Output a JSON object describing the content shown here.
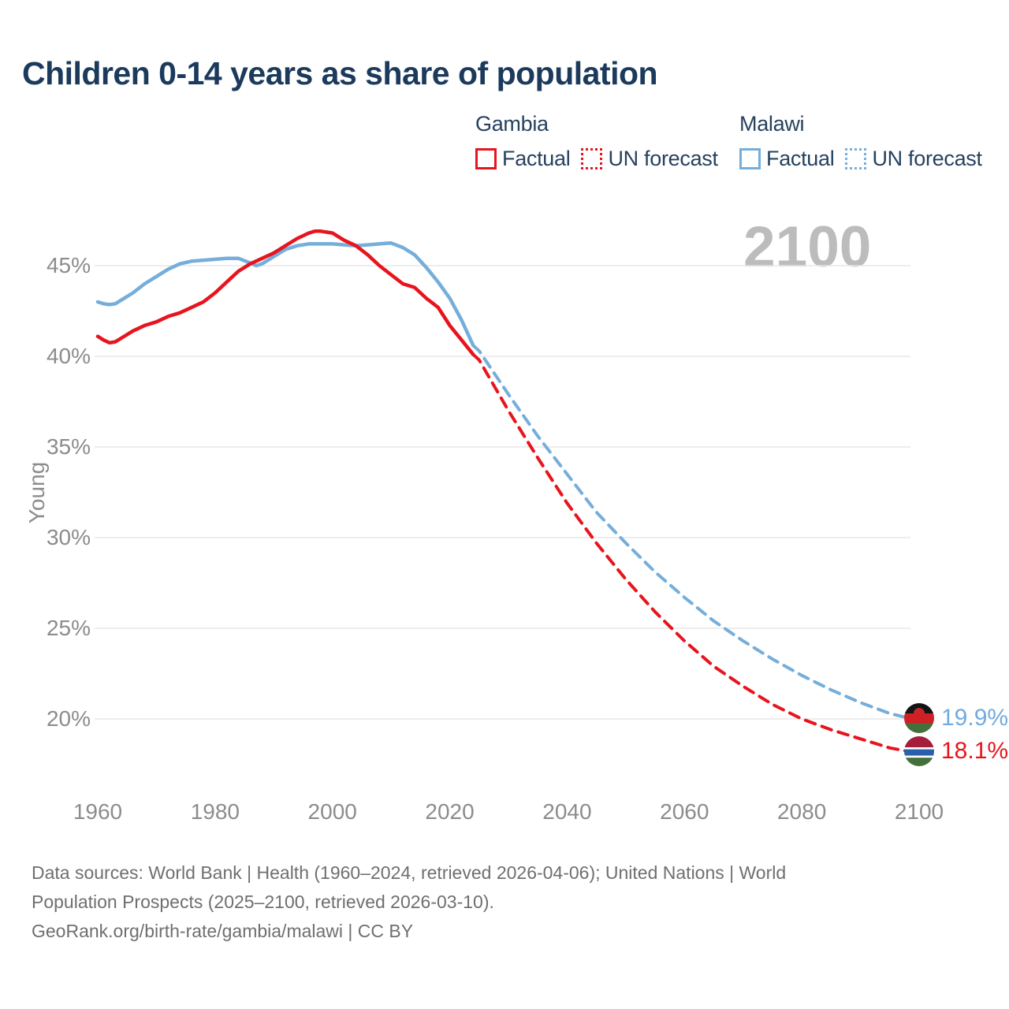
{
  "title": "Children 0-14 years as share of population",
  "watermark": "2100",
  "legend": {
    "groups": [
      {
        "name": "Gambia",
        "color": "#e8141d",
        "items": [
          {
            "label": "Factual",
            "style": "solid"
          },
          {
            "label": "UN forecast",
            "style": "dotted"
          }
        ]
      },
      {
        "name": "Malawi",
        "color": "#75aedb",
        "items": [
          {
            "label": "Factual",
            "style": "solid"
          },
          {
            "label": "UN forecast",
            "style": "dotted"
          }
        ]
      }
    ]
  },
  "end_labels": [
    {
      "country": "Malawi",
      "value": "19.9%",
      "color": "#72abde",
      "flag_icon": "malawi-flag-icon",
      "year": 2100
    },
    {
      "country": "Gambia",
      "value": "18.1%",
      "color": "#e8141d",
      "flag_icon": "gambia-flag-icon",
      "year": 2100
    }
  ],
  "footer": {
    "line1": "Data sources: World Bank | Health (1960–2024, retrieved 2026-04-06); United Nations | World",
    "line2": "Population Prospects (2025–2100, retrieved 2026-03-10).",
    "line3": "GeoRank.org/birth-rate/gambia/malawi | CC BY"
  },
  "chart_data": {
    "type": "line",
    "title": "Children 0-14 years as share of population",
    "xlabel": "",
    "ylabel": "Young",
    "xlim": [
      1959.5,
      2101.5
    ],
    "ylim": [
      17.5,
      47.5
    ],
    "grid": "horizontal-only",
    "legend_position": "top-right",
    "yticks": [
      {
        "v": 45,
        "label": "45%"
      },
      {
        "v": 40,
        "label": "40%"
      },
      {
        "v": 35,
        "label": "35%"
      },
      {
        "v": 30,
        "label": "30%"
      },
      {
        "v": 25,
        "label": "25%"
      },
      {
        "v": 20,
        "label": "20%"
      }
    ],
    "xticks": [
      {
        "v": 1960,
        "label": "1960"
      },
      {
        "v": 1980,
        "label": "1980"
      },
      {
        "v": 2000,
        "label": "2000"
      },
      {
        "v": 2020,
        "label": "2020"
      },
      {
        "v": 2040,
        "label": "2040"
      },
      {
        "v": 2060,
        "label": "2060"
      },
      {
        "v": 2080,
        "label": "2080"
      },
      {
        "v": 2100,
        "label": "2100"
      }
    ],
    "series": [
      {
        "name": "Malawi Factual",
        "color": "#75aedb",
        "dash": "solid",
        "points": [
          [
            1960,
            43.0
          ],
          [
            1961,
            42.9
          ],
          [
            1962,
            42.85
          ],
          [
            1963,
            42.9
          ],
          [
            1964,
            43.1
          ],
          [
            1966,
            43.5
          ],
          [
            1968,
            44.0
          ],
          [
            1970,
            44.4
          ],
          [
            1972,
            44.8
          ],
          [
            1974,
            45.1
          ],
          [
            1976,
            45.25
          ],
          [
            1978,
            45.3
          ],
          [
            1980,
            45.35
          ],
          [
            1982,
            45.4
          ],
          [
            1984,
            45.4
          ],
          [
            1986,
            45.15
          ],
          [
            1987,
            45.0
          ],
          [
            1988,
            45.1
          ],
          [
            1990,
            45.5
          ],
          [
            1992,
            45.9
          ],
          [
            1994,
            46.1
          ],
          [
            1996,
            46.2
          ],
          [
            1998,
            46.2
          ],
          [
            2000,
            46.2
          ],
          [
            2002,
            46.15
          ],
          [
            2004,
            46.1
          ],
          [
            2006,
            46.15
          ],
          [
            2008,
            46.2
          ],
          [
            2010,
            46.25
          ],
          [
            2012,
            46.0
          ],
          [
            2014,
            45.6
          ],
          [
            2016,
            44.9
          ],
          [
            2018,
            44.1
          ],
          [
            2020,
            43.2
          ],
          [
            2022,
            42.0
          ],
          [
            2024,
            40.6
          ]
        ]
      },
      {
        "name": "Malawi UN forecast",
        "color": "#75aedb",
        "dash": "dashed",
        "points": [
          [
            2024,
            40.6
          ],
          [
            2025,
            40.3
          ],
          [
            2030,
            37.9
          ],
          [
            2035,
            35.6
          ],
          [
            2040,
            33.5
          ],
          [
            2045,
            31.4
          ],
          [
            2050,
            29.7
          ],
          [
            2055,
            28.1
          ],
          [
            2060,
            26.7
          ],
          [
            2065,
            25.4
          ],
          [
            2070,
            24.3
          ],
          [
            2075,
            23.3
          ],
          [
            2080,
            22.4
          ],
          [
            2085,
            21.6
          ],
          [
            2090,
            20.9
          ],
          [
            2095,
            20.3
          ],
          [
            2100,
            19.9
          ]
        ]
      },
      {
        "name": "Gambia Factual",
        "color": "#e8141d",
        "dash": "solid",
        "points": [
          [
            1960,
            41.1
          ],
          [
            1961,
            40.9
          ],
          [
            1962,
            40.75
          ],
          [
            1963,
            40.8
          ],
          [
            1964,
            41.0
          ],
          [
            1966,
            41.4
          ],
          [
            1968,
            41.7
          ],
          [
            1970,
            41.9
          ],
          [
            1972,
            42.2
          ],
          [
            1974,
            42.4
          ],
          [
            1976,
            42.7
          ],
          [
            1978,
            43.0
          ],
          [
            1980,
            43.5
          ],
          [
            1982,
            44.1
          ],
          [
            1984,
            44.7
          ],
          [
            1986,
            45.1
          ],
          [
            1988,
            45.4
          ],
          [
            1990,
            45.7
          ],
          [
            1992,
            46.1
          ],
          [
            1994,
            46.5
          ],
          [
            1996,
            46.8
          ],
          [
            1997,
            46.9
          ],
          [
            1998,
            46.9
          ],
          [
            2000,
            46.8
          ],
          [
            2002,
            46.4
          ],
          [
            2004,
            46.1
          ],
          [
            2006,
            45.6
          ],
          [
            2008,
            45.0
          ],
          [
            2010,
            44.5
          ],
          [
            2012,
            44.0
          ],
          [
            2014,
            43.8
          ],
          [
            2016,
            43.2
          ],
          [
            2018,
            42.7
          ],
          [
            2020,
            41.7
          ],
          [
            2022,
            40.9
          ],
          [
            2024,
            40.1
          ]
        ]
      },
      {
        "name": "Gambia UN forecast",
        "color": "#e8141d",
        "dash": "dashed",
        "points": [
          [
            2024,
            40.1
          ],
          [
            2025,
            39.8
          ],
          [
            2030,
            37.0
          ],
          [
            2035,
            34.4
          ],
          [
            2040,
            31.9
          ],
          [
            2045,
            29.7
          ],
          [
            2050,
            27.7
          ],
          [
            2055,
            25.9
          ],
          [
            2060,
            24.3
          ],
          [
            2065,
            22.9
          ],
          [
            2070,
            21.8
          ],
          [
            2075,
            20.8
          ],
          [
            2080,
            20.0
          ],
          [
            2085,
            19.4
          ],
          [
            2090,
            18.9
          ],
          [
            2095,
            18.4
          ],
          [
            2100,
            18.1
          ]
        ]
      }
    ],
    "end_annotations": [
      {
        "series": "Malawi UN forecast",
        "year": 2100,
        "value": 19.9,
        "label": "19.9%"
      },
      {
        "series": "Gambia UN forecast",
        "year": 2100,
        "value": 18.1,
        "label": "18.1%"
      }
    ]
  }
}
